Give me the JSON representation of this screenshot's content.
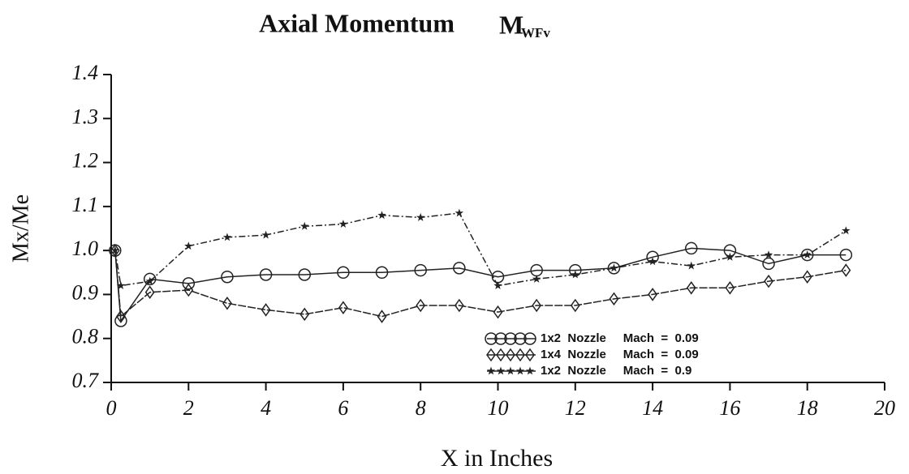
{
  "chart_data": {
    "type": "line",
    "title": "Axial Momentum",
    "title_symbol": "M",
    "title_subscript": "WFv",
    "xlabel": "X in Inches",
    "ylabel": "Mx/Me",
    "x": [
      0.1,
      0.25,
      1,
      2,
      3,
      4,
      5,
      6,
      7,
      8,
      9,
      10,
      11,
      12,
      13,
      14,
      15,
      16,
      17,
      18,
      19
    ],
    "series": [
      {
        "name": "1x2  Nozzle     Mach  =  0.09",
        "marker": "circle",
        "color": "#222222",
        "values": [
          1.0,
          0.84,
          0.935,
          0.925,
          0.94,
          0.945,
          0.945,
          0.95,
          0.95,
          0.955,
          0.96,
          0.94,
          0.955,
          0.955,
          0.96,
          0.985,
          1.005,
          1.0,
          0.97,
          0.99,
          0.99
        ]
      },
      {
        "name": "1x4  Nozzle     Mach  =  0.09",
        "marker": "diamond",
        "color": "#222222",
        "values": [
          1.0,
          0.85,
          0.905,
          0.91,
          0.88,
          0.865,
          0.855,
          0.87,
          0.85,
          0.875,
          0.875,
          0.86,
          0.875,
          0.875,
          0.89,
          0.9,
          0.915,
          0.915,
          0.93,
          0.94,
          0.955
        ]
      },
      {
        "name": "1x2  Nozzle     Mach  =  0.9",
        "marker": "star",
        "color": "#222222",
        "values": [
          1.0,
          0.92,
          0.93,
          1.01,
          1.03,
          1.035,
          1.055,
          1.06,
          1.08,
          1.075,
          1.085,
          0.92,
          0.935,
          0.945,
          0.96,
          0.975,
          0.965,
          0.985,
          0.99,
          0.99,
          1.045
        ]
      }
    ],
    "xlim": [
      0,
      20
    ],
    "xticks": [
      0,
      2,
      4,
      6,
      8,
      10,
      12,
      14,
      16,
      18,
      20
    ],
    "ylim": [
      0.7,
      1.4
    ],
    "yticks": [
      0.7,
      0.8,
      0.9,
      {
        "value": 1,
        "label": "1.0"
      },
      1.1,
      1.2,
      1.3,
      1.4
    ],
    "legend": "lower right"
  }
}
